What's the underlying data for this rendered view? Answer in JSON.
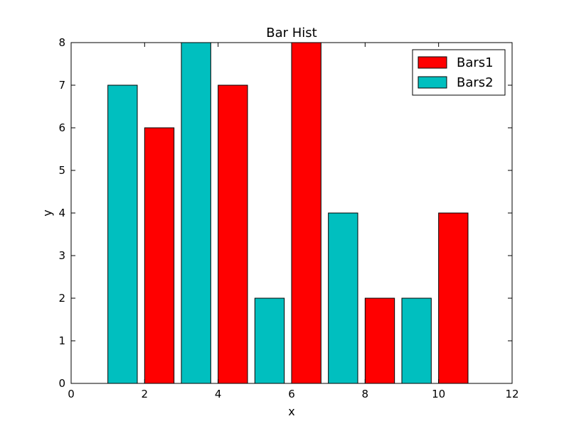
{
  "chart_data": {
    "type": "bar",
    "title": "Bar Hist",
    "xlabel": "x",
    "ylabel": "y",
    "xlim": [
      0,
      12
    ],
    "ylim": [
      0,
      8
    ],
    "xticks": [
      0,
      2,
      4,
      6,
      8,
      10,
      12
    ],
    "yticks": [
      0,
      1,
      2,
      3,
      4,
      5,
      6,
      7,
      8
    ],
    "bar_width": 0.8,
    "grid": false,
    "legend_position": "top-right",
    "series": [
      {
        "name": "Bars1",
        "color": "#ff0000",
        "x": [
          2,
          4,
          6,
          8,
          10
        ],
        "values": [
          6,
          7,
          8,
          2,
          4
        ]
      },
      {
        "name": "Bars2",
        "color": "#00bfbf",
        "x": [
          1,
          3,
          5,
          7,
          9
        ],
        "values": [
          7,
          8,
          2,
          4,
          2
        ]
      }
    ]
  }
}
